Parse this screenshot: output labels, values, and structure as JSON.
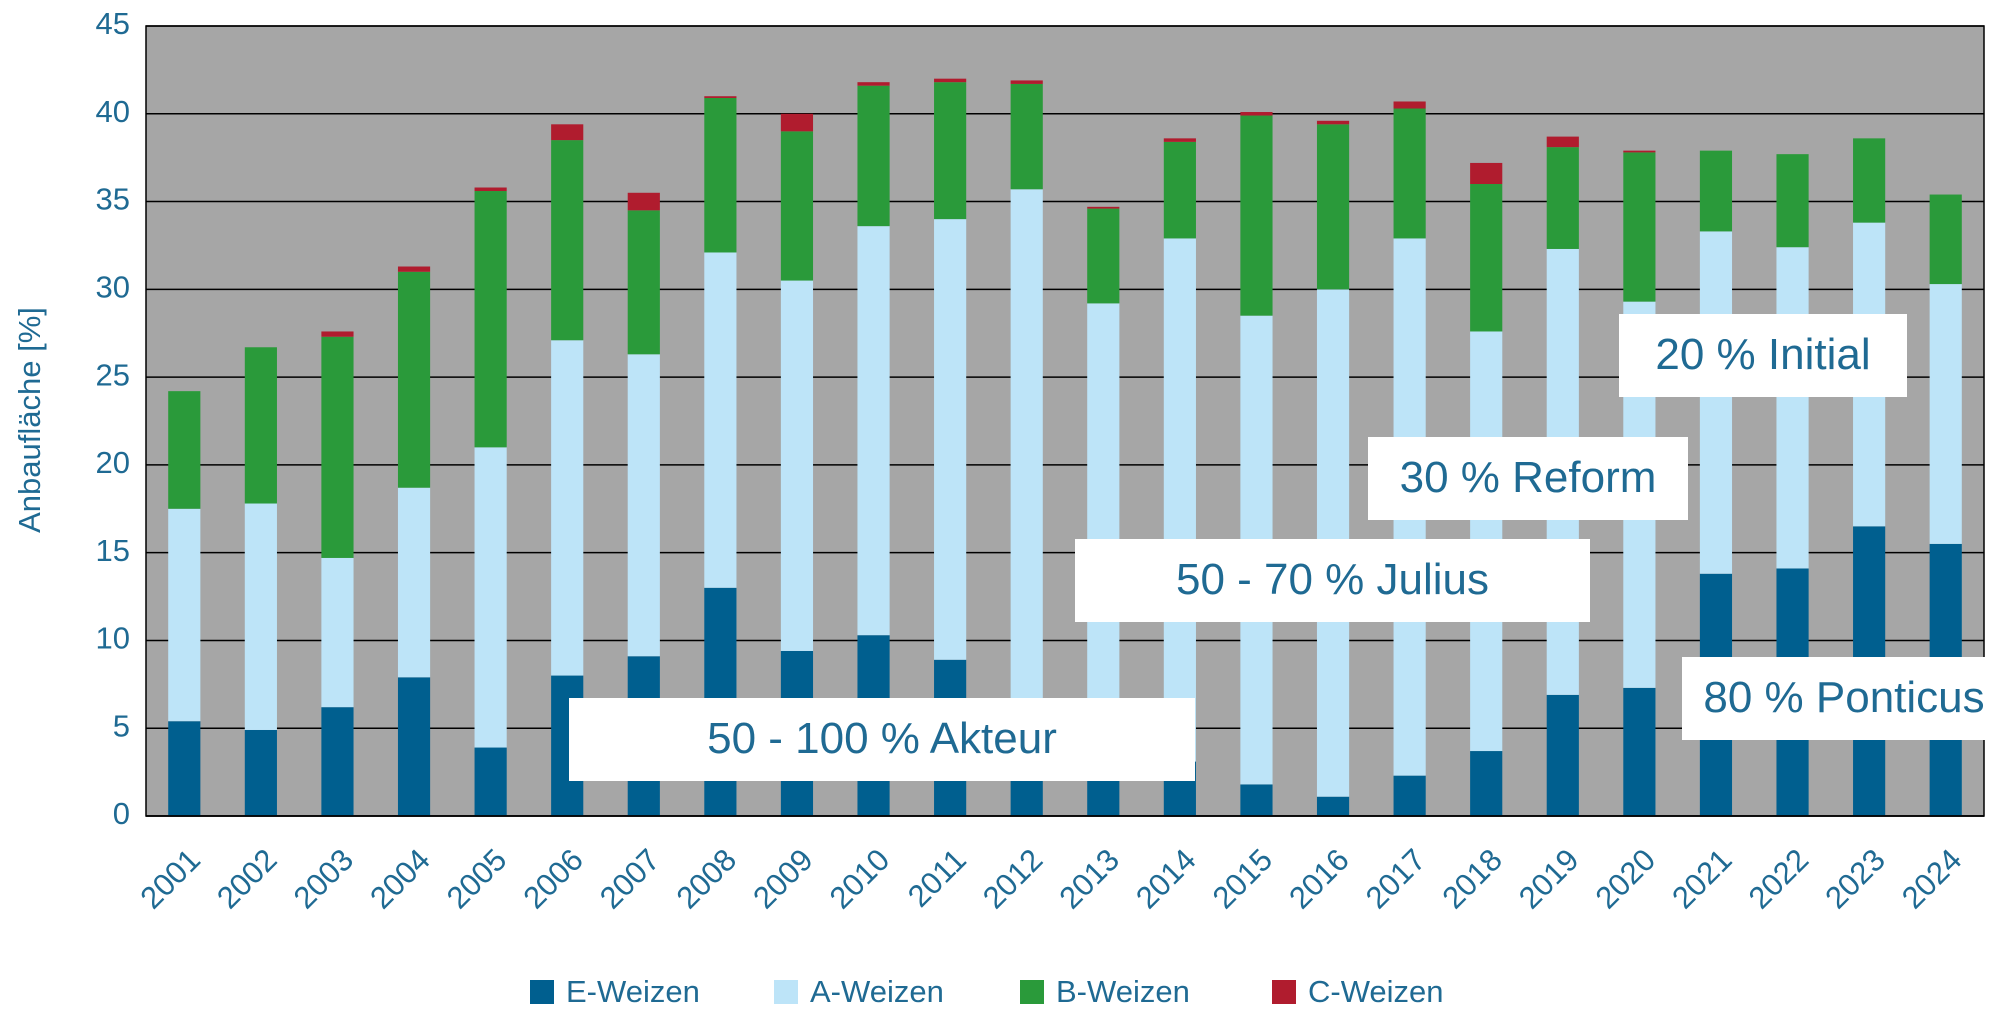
{
  "chart_data": {
    "type": "stacked_bar",
    "ylabel": "Anbaufläche [%]",
    "categories": [
      "2001",
      "2002",
      "2003",
      "2004",
      "2005",
      "2006",
      "2007",
      "2008",
      "2009",
      "2010",
      "2011",
      "2012",
      "2013",
      "2014",
      "2015",
      "2016",
      "2017",
      "2018",
      "2019",
      "2020",
      "2021",
      "2022",
      "2023",
      "2024"
    ],
    "series": [
      {
        "name": "E-Weizen",
        "color": "#005f8f",
        "values": [
          5.4,
          4.9,
          6.2,
          7.9,
          3.9,
          8.0,
          9.1,
          13.0,
          9.4,
          10.3,
          8.9,
          6.7,
          4.5,
          3.1,
          1.8,
          1.1,
          2.3,
          3.7,
          6.9,
          7.3,
          13.8,
          14.1,
          16.5,
          15.5
        ]
      },
      {
        "name": "A-Weizen",
        "color": "#bde4f8",
        "values": [
          12.1,
          12.9,
          8.5,
          10.8,
          17.1,
          19.1,
          17.2,
          19.1,
          21.1,
          23.3,
          25.1,
          29.0,
          24.7,
          29.8,
          26.7,
          28.9,
          30.6,
          23.9,
          25.4,
          22.0,
          19.5,
          18.3,
          17.3,
          14.8
        ]
      },
      {
        "name": "B-Weizen",
        "color": "#2a9a3a",
        "values": [
          6.7,
          8.9,
          12.6,
          12.3,
          14.6,
          11.4,
          8.2,
          8.8,
          8.5,
          8.0,
          7.8,
          6.0,
          5.4,
          5.5,
          11.4,
          9.4,
          7.4,
          8.4,
          5.8,
          8.5,
          4.6,
          5.3,
          4.8,
          5.1
        ]
      },
      {
        "name": "C-Weizen",
        "color": "#b01c2e",
        "values": [
          0,
          0,
          0.3,
          0.3,
          0.2,
          0.9,
          1.0,
          0.1,
          1.0,
          0.2,
          0.2,
          0.2,
          0.1,
          0.2,
          0.2,
          0.2,
          0.4,
          1.2,
          0.6,
          0.1,
          0,
          0,
          0,
          0
        ]
      }
    ],
    "annotations": [
      "50 - 100 % Akteur",
      "50 - 70 % Julius",
      "30 % Reform",
      "20 % Initial",
      "80 % Ponticus"
    ],
    "ylim": [
      0,
      45
    ],
    "yticks": [
      0,
      5,
      10,
      15,
      20,
      25,
      30,
      35,
      40,
      45
    ],
    "grid": true,
    "legend": "bottom"
  }
}
